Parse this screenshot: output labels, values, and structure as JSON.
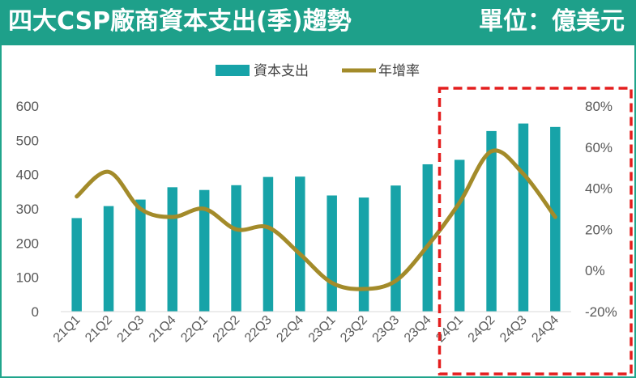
{
  "header": {
    "title": "四大CSP廠商資本支出(季)趨勢",
    "unit": "單位：億美元",
    "background_color": "#1ea08a"
  },
  "chart_data": {
    "type": "bar",
    "categories": [
      "21Q1",
      "21Q2",
      "21Q3",
      "21Q4",
      "22Q1",
      "22Q2",
      "22Q3",
      "22Q4",
      "23Q1",
      "23Q2",
      "23Q3",
      "23Q4",
      "24Q1",
      "24Q2",
      "24Q3",
      "24Q4"
    ],
    "series": [
      {
        "name": "資本支出",
        "type": "bar",
        "axis": "left",
        "color": "#17a3a8",
        "values": [
          273,
          308,
          327,
          363,
          355,
          369,
          393,
          394,
          339,
          333,
          368,
          430,
          443,
          527,
          549,
          539
        ]
      },
      {
        "name": "年增率",
        "type": "line",
        "axis": "right",
        "color": "#a38b2a",
        "values": [
          36,
          48,
          30,
          26,
          30,
          20,
          21,
          8,
          -6,
          -9,
          -5,
          12,
          33,
          58,
          47,
          26
        ]
      }
    ],
    "y_left": {
      "min": 0,
      "max": 600,
      "ticks": [
        "0",
        "100",
        "200",
        "300",
        "400",
        "500",
        "600"
      ]
    },
    "y_right": {
      "min": -20,
      "max": 80,
      "ticks": [
        "-20%",
        "0%",
        "20%",
        "40%",
        "60%",
        "80%"
      ]
    },
    "legend_position": "top",
    "grid": false,
    "highlight": {
      "from": "24Q1",
      "to": "24Q4",
      "style": "red dashed box"
    }
  }
}
